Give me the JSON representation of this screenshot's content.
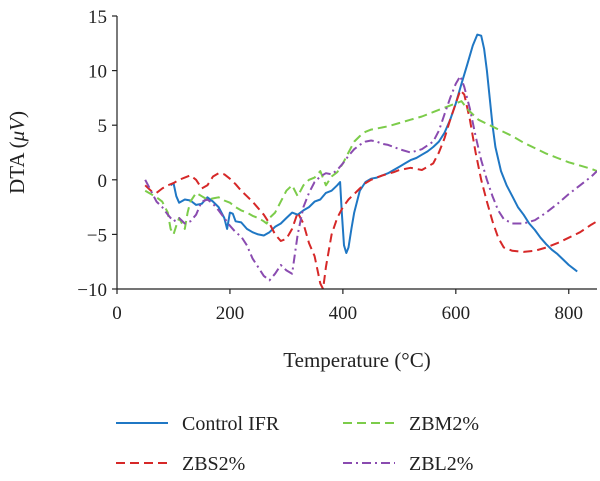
{
  "chart_data": {
    "type": "line",
    "xlabel": "Temperature (°C)",
    "ylabel_prefix": "DTA (",
    "ylabel_unit": "μV",
    "ylabel_suffix": ")",
    "xlim": [
      0,
      850
    ],
    "ylim": [
      -10,
      15
    ],
    "xticks": [
      0,
      200,
      400,
      600,
      800
    ],
    "yticks": [
      -10,
      -5,
      0,
      5,
      10,
      15
    ],
    "grid": false,
    "legend_position": "bottom",
    "series": [
      {
        "name": "Control IFR",
        "color": "#1f77c4",
        "dash": "solid",
        "points": [
          [
            95,
            -0.5
          ],
          [
            100,
            -0.3
          ],
          [
            105,
            -1.5
          ],
          [
            110,
            -2.1
          ],
          [
            120,
            -1.8
          ],
          [
            130,
            -1.9
          ],
          [
            140,
            -2.3
          ],
          [
            150,
            -2.2
          ],
          [
            160,
            -1.6
          ],
          [
            170,
            -2.0
          ],
          [
            180,
            -2.5
          ],
          [
            190,
            -3.5
          ],
          [
            195,
            -4.5
          ],
          [
            200,
            -3.0
          ],
          [
            205,
            -3.1
          ],
          [
            210,
            -3.8
          ],
          [
            220,
            -3.9
          ],
          [
            230,
            -4.5
          ],
          [
            240,
            -4.8
          ],
          [
            250,
            -5.0
          ],
          [
            260,
            -5.1
          ],
          [
            270,
            -4.8
          ],
          [
            280,
            -4.3
          ],
          [
            290,
            -4.0
          ],
          [
            300,
            -3.5
          ],
          [
            310,
            -3.0
          ],
          [
            320,
            -3.2
          ],
          [
            330,
            -2.8
          ],
          [
            340,
            -2.5
          ],
          [
            350,
            -2.0
          ],
          [
            360,
            -1.8
          ],
          [
            370,
            -1.2
          ],
          [
            380,
            -1.0
          ],
          [
            390,
            -0.5
          ],
          [
            395,
            -0.2
          ],
          [
            398,
            -3.0
          ],
          [
            402,
            -6.0
          ],
          [
            406,
            -6.7
          ],
          [
            410,
            -6.2
          ],
          [
            415,
            -4.5
          ],
          [
            420,
            -3.0
          ],
          [
            430,
            -1.0
          ],
          [
            440,
            -0.2
          ],
          [
            450,
            0.1
          ],
          [
            460,
            0.2
          ],
          [
            470,
            0.4
          ],
          [
            480,
            0.6
          ],
          [
            490,
            0.9
          ],
          [
            500,
            1.2
          ],
          [
            510,
            1.5
          ],
          [
            520,
            1.8
          ],
          [
            530,
            2.0
          ],
          [
            540,
            2.3
          ],
          [
            550,
            2.6
          ],
          [
            560,
            3.0
          ],
          [
            570,
            3.5
          ],
          [
            580,
            4.3
          ],
          [
            590,
            5.5
          ],
          [
            600,
            7.0
          ],
          [
            610,
            8.8
          ],
          [
            620,
            10.5
          ],
          [
            630,
            12.3
          ],
          [
            638,
            13.3
          ],
          [
            645,
            13.2
          ],
          [
            650,
            12.0
          ],
          [
            655,
            10.0
          ],
          [
            660,
            7.5
          ],
          [
            665,
            5.0
          ],
          [
            670,
            3.0
          ],
          [
            680,
            0.8
          ],
          [
            690,
            -0.5
          ],
          [
            700,
            -1.5
          ],
          [
            710,
            -2.5
          ],
          [
            720,
            -3.2
          ],
          [
            730,
            -4.0
          ],
          [
            740,
            -4.6
          ],
          [
            750,
            -5.3
          ],
          [
            760,
            -5.9
          ],
          [
            770,
            -6.4
          ],
          [
            780,
            -6.8
          ],
          [
            790,
            -7.3
          ],
          [
            800,
            -7.8
          ],
          [
            810,
            -8.2
          ],
          [
            815,
            -8.4
          ]
        ]
      },
      {
        "name": "ZBS2%",
        "color": "#d62828",
        "dash": "dashed",
        "points": [
          [
            50,
            -0.5
          ],
          [
            60,
            -1.0
          ],
          [
            70,
            -1.2
          ],
          [
            80,
            -0.8
          ],
          [
            90,
            -0.5
          ],
          [
            100,
            -0.3
          ],
          [
            110,
            0.0
          ],
          [
            120,
            0.2
          ],
          [
            130,
            0.4
          ],
          [
            140,
            0.0
          ],
          [
            150,
            -0.8
          ],
          [
            160,
            -0.5
          ],
          [
            170,
            0.3
          ],
          [
            180,
            0.6
          ],
          [
            190,
            0.5
          ],
          [
            200,
            0.1
          ],
          [
            210,
            -0.4
          ],
          [
            220,
            -1.0
          ],
          [
            230,
            -1.5
          ],
          [
            240,
            -2.0
          ],
          [
            250,
            -2.6
          ],
          [
            260,
            -3.2
          ],
          [
            270,
            -4.0
          ],
          [
            280,
            -5.0
          ],
          [
            290,
            -5.6
          ],
          [
            300,
            -5.4
          ],
          [
            310,
            -4.5
          ],
          [
            320,
            -3.0
          ],
          [
            330,
            -4.0
          ],
          [
            340,
            -5.8
          ],
          [
            350,
            -7.0
          ],
          [
            360,
            -9.5
          ],
          [
            365,
            -10.0
          ],
          [
            370,
            -8.0
          ],
          [
            380,
            -5.0
          ],
          [
            390,
            -3.5
          ],
          [
            400,
            -2.5
          ],
          [
            410,
            -1.8
          ],
          [
            420,
            -1.3
          ],
          [
            430,
            -0.8
          ],
          [
            440,
            -0.3
          ],
          [
            450,
            0.0
          ],
          [
            470,
            0.4
          ],
          [
            490,
            0.7
          ],
          [
            500,
            0.9
          ],
          [
            520,
            1.1
          ],
          [
            540,
            0.9
          ],
          [
            560,
            1.5
          ],
          [
            570,
            2.5
          ],
          [
            580,
            3.8
          ],
          [
            590,
            5.5
          ],
          [
            600,
            7.0
          ],
          [
            608,
            8.2
          ],
          [
            615,
            7.8
          ],
          [
            625,
            5.5
          ],
          [
            635,
            2.5
          ],
          [
            645,
            0.0
          ],
          [
            655,
            -2.0
          ],
          [
            665,
            -3.8
          ],
          [
            675,
            -5.3
          ],
          [
            685,
            -6.2
          ],
          [
            700,
            -6.5
          ],
          [
            720,
            -6.6
          ],
          [
            740,
            -6.5
          ],
          [
            760,
            -6.2
          ],
          [
            780,
            -5.8
          ],
          [
            800,
            -5.3
          ],
          [
            820,
            -4.8
          ],
          [
            840,
            -4.1
          ],
          [
            850,
            -3.8
          ]
        ]
      },
      {
        "name": "ZBM2%",
        "color": "#7ccc4a",
        "dash": "dashed",
        "points": [
          [
            50,
            -1.0
          ],
          [
            60,
            -1.3
          ],
          [
            70,
            -1.6
          ],
          [
            80,
            -2.0
          ],
          [
            90,
            -3.0
          ],
          [
            95,
            -4.5
          ],
          [
            100,
            -5.0
          ],
          [
            105,
            -4.2
          ],
          [
            110,
            -3.5
          ],
          [
            120,
            -4.5
          ],
          [
            125,
            -3.0
          ],
          [
            130,
            -2.0
          ],
          [
            140,
            -1.2
          ],
          [
            150,
            -1.5
          ],
          [
            160,
            -1.8
          ],
          [
            170,
            -1.7
          ],
          [
            180,
            -1.6
          ],
          [
            190,
            -1.9
          ],
          [
            200,
            -2.1
          ],
          [
            210,
            -2.5
          ],
          [
            220,
            -2.8
          ],
          [
            230,
            -3.0
          ],
          [
            240,
            -3.3
          ],
          [
            250,
            -3.5
          ],
          [
            260,
            -3.8
          ],
          [
            265,
            -4.0
          ],
          [
            270,
            -3.5
          ],
          [
            280,
            -3.0
          ],
          [
            290,
            -2.0
          ],
          [
            300,
            -1.0
          ],
          [
            310,
            -0.5
          ],
          [
            320,
            -1.5
          ],
          [
            330,
            -0.5
          ],
          [
            340,
            0.0
          ],
          [
            350,
            0.2
          ],
          [
            360,
            0.8
          ],
          [
            370,
            -0.5
          ],
          [
            380,
            0.3
          ],
          [
            390,
            0.7
          ],
          [
            400,
            1.5
          ],
          [
            410,
            2.5
          ],
          [
            420,
            3.5
          ],
          [
            430,
            4.0
          ],
          [
            440,
            4.4
          ],
          [
            450,
            4.6
          ],
          [
            460,
            4.7
          ],
          [
            480,
            4.9
          ],
          [
            500,
            5.2
          ],
          [
            520,
            5.5
          ],
          [
            540,
            5.8
          ],
          [
            560,
            6.2
          ],
          [
            580,
            6.6
          ],
          [
            600,
            7.0
          ],
          [
            610,
            7.2
          ],
          [
            620,
            6.5
          ],
          [
            640,
            5.5
          ],
          [
            660,
            5.0
          ],
          [
            680,
            4.5
          ],
          [
            700,
            4.0
          ],
          [
            720,
            3.4
          ],
          [
            740,
            2.9
          ],
          [
            760,
            2.4
          ],
          [
            780,
            2.0
          ],
          [
            800,
            1.6
          ],
          [
            820,
            1.3
          ],
          [
            840,
            1.0
          ],
          [
            850,
            0.8
          ]
        ]
      },
      {
        "name": "ZBL2%",
        "color": "#8a4bb0",
        "dash": "dashdot",
        "points": [
          [
            50,
            0.0
          ],
          [
            60,
            -1.0
          ],
          [
            70,
            -2.0
          ],
          [
            80,
            -2.5
          ],
          [
            90,
            -3.2
          ],
          [
            100,
            -3.8
          ],
          [
            110,
            -3.5
          ],
          [
            120,
            -4.0
          ],
          [
            130,
            -3.8
          ],
          [
            140,
            -3.2
          ],
          [
            150,
            -2.0
          ],
          [
            160,
            -1.8
          ],
          [
            170,
            -2.2
          ],
          [
            180,
            -2.8
          ],
          [
            190,
            -3.5
          ],
          [
            200,
            -4.2
          ],
          [
            210,
            -4.8
          ],
          [
            220,
            -5.2
          ],
          [
            230,
            -6.0
          ],
          [
            240,
            -7.2
          ],
          [
            250,
            -8.0
          ],
          [
            260,
            -8.8
          ],
          [
            270,
            -9.2
          ],
          [
            280,
            -8.6
          ],
          [
            290,
            -7.8
          ],
          [
            300,
            -8.3
          ],
          [
            310,
            -8.6
          ],
          [
            320,
            -5.0
          ],
          [
            330,
            -2.5
          ],
          [
            340,
            -1.2
          ],
          [
            350,
            -0.2
          ],
          [
            360,
            0.3
          ],
          [
            370,
            0.6
          ],
          [
            380,
            0.5
          ],
          [
            390,
            0.9
          ],
          [
            400,
            1.5
          ],
          [
            410,
            2.2
          ],
          [
            420,
            2.8
          ],
          [
            430,
            3.2
          ],
          [
            440,
            3.5
          ],
          [
            450,
            3.6
          ],
          [
            460,
            3.5
          ],
          [
            470,
            3.3
          ],
          [
            480,
            3.2
          ],
          [
            490,
            3.0
          ],
          [
            500,
            2.8
          ],
          [
            520,
            2.5
          ],
          [
            540,
            2.8
          ],
          [
            560,
            3.5
          ],
          [
            570,
            4.5
          ],
          [
            580,
            6.0
          ],
          [
            590,
            7.5
          ],
          [
            600,
            8.8
          ],
          [
            608,
            9.5
          ],
          [
            615,
            8.5
          ],
          [
            625,
            6.5
          ],
          [
            635,
            4.0
          ],
          [
            645,
            1.8
          ],
          [
            655,
            0.0
          ],
          [
            665,
            -1.5
          ],
          [
            675,
            -2.8
          ],
          [
            685,
            -3.6
          ],
          [
            700,
            -4.0
          ],
          [
            720,
            -4.0
          ],
          [
            740,
            -3.7
          ],
          [
            760,
            -3.0
          ],
          [
            780,
            -2.2
          ],
          [
            800,
            -1.3
          ],
          [
            820,
            -0.5
          ],
          [
            840,
            0.3
          ],
          [
            850,
            0.8
          ]
        ]
      }
    ]
  }
}
